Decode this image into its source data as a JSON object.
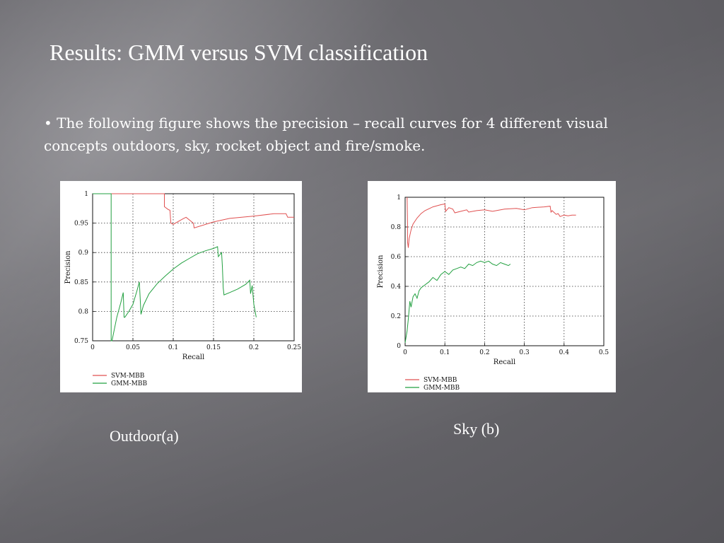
{
  "slide": {
    "title": "Results: GMM versus SVM classification",
    "bullet": "• The following figure shows the precision – recall curves for 4 different visual concepts  outdoors, sky, rocket object and fire/smoke.",
    "captions": [
      "Outdoor(a)",
      "Sky (b)"
    ]
  },
  "colors": {
    "svm": "#e05050",
    "gmm": "#22a040"
  },
  "chart_data": [
    {
      "type": "line",
      "xlabel": "Recall",
      "ylabel": "Precision",
      "xlim": [
        0,
        0.25
      ],
      "ylim": [
        0.75,
        1.0
      ],
      "xticks": [
        0,
        0.05,
        0.1,
        0.15,
        0.2,
        0.25
      ],
      "xtick_labels": [
        "0",
        "0.05",
        "0.1",
        "0.15",
        "0.2",
        "0.25"
      ],
      "yticks": [
        0.75,
        0.8,
        0.85,
        0.9,
        0.95,
        1.0
      ],
      "ytick_labels": [
        "0.75",
        "0.8",
        "0.85",
        "0.9",
        "0.95",
        "1"
      ],
      "grid": true,
      "legend": "bottom-left",
      "series": [
        {
          "name": "SVM-MBB",
          "x": [
            0.0,
            0.089,
            0.089,
            0.094,
            0.096,
            0.097,
            0.1,
            0.113,
            0.116,
            0.125,
            0.126,
            0.15,
            0.17,
            0.2,
            0.225,
            0.24,
            0.242,
            0.25
          ],
          "y": [
            1.0,
            1.0,
            0.978,
            0.973,
            0.972,
            0.95,
            0.948,
            0.958,
            0.96,
            0.95,
            0.942,
            0.952,
            0.958,
            0.962,
            0.966,
            0.966,
            0.96,
            0.96
          ]
        },
        {
          "name": "GMM-MBB",
          "x": [
            0.0,
            0.023,
            0.023,
            0.024,
            0.03,
            0.035,
            0.038,
            0.039,
            0.04,
            0.045,
            0.05,
            0.055,
            0.058,
            0.06,
            0.063,
            0.07,
            0.08,
            0.09,
            0.1,
            0.11,
            0.12,
            0.13,
            0.14,
            0.15,
            0.155,
            0.156,
            0.16,
            0.161,
            0.162,
            0.163,
            0.17,
            0.18,
            0.19,
            0.195,
            0.196,
            0.198,
            0.2,
            0.201,
            0.203
          ],
          "y": [
            1.0,
            1.0,
            0.75,
            0.75,
            0.79,
            0.815,
            0.832,
            0.79,
            0.79,
            0.8,
            0.812,
            0.835,
            0.85,
            0.795,
            0.81,
            0.83,
            0.847,
            0.86,
            0.872,
            0.882,
            0.89,
            0.898,
            0.903,
            0.907,
            0.91,
            0.893,
            0.9,
            0.877,
            0.84,
            0.828,
            0.832,
            0.838,
            0.846,
            0.853,
            0.83,
            0.844,
            0.812,
            0.805,
            0.79
          ]
        }
      ]
    },
    {
      "type": "line",
      "xlabel": "Recall",
      "ylabel": "Precision",
      "xlim": [
        0,
        0.5
      ],
      "ylim": [
        0,
        1.0
      ],
      "xticks": [
        0,
        0.1,
        0.2,
        0.3,
        0.4,
        0.5
      ],
      "xtick_labels": [
        "0",
        "0.1",
        "0.2",
        "0.3",
        "0.4",
        "0.5"
      ],
      "yticks": [
        0,
        0.2,
        0.4,
        0.6,
        0.8,
        1.0
      ],
      "ytick_labels": [
        "0",
        "0.2",
        "0.4",
        "0.6",
        "0.8",
        "1"
      ],
      "grid": true,
      "legend": "bottom-left",
      "series": [
        {
          "name": "SVM-MBB",
          "x": [
            0.005,
            0.006,
            0.006,
            0.008,
            0.01,
            0.015,
            0.02,
            0.03,
            0.04,
            0.05,
            0.07,
            0.09,
            0.1,
            0.102,
            0.11,
            0.12,
            0.125,
            0.14,
            0.155,
            0.16,
            0.18,
            0.2,
            0.22,
            0.25,
            0.28,
            0.3,
            0.32,
            0.35,
            0.365,
            0.367,
            0.37,
            0.38,
            0.385,
            0.39,
            0.4,
            0.41,
            0.42,
            0.43
          ],
          "y": [
            1.0,
            0.82,
            0.7,
            0.66,
            0.72,
            0.78,
            0.82,
            0.86,
            0.89,
            0.91,
            0.935,
            0.95,
            0.955,
            0.905,
            0.93,
            0.92,
            0.895,
            0.905,
            0.915,
            0.9,
            0.91,
            0.915,
            0.905,
            0.92,
            0.925,
            0.915,
            0.93,
            0.935,
            0.94,
            0.9,
            0.91,
            0.885,
            0.89,
            0.87,
            0.88,
            0.875,
            0.88,
            0.88
          ]
        },
        {
          "name": "GMM-MBB",
          "x": [
            0.0,
            0.005,
            0.008,
            0.01,
            0.012,
            0.015,
            0.02,
            0.025,
            0.03,
            0.035,
            0.04,
            0.05,
            0.06,
            0.07,
            0.08,
            0.09,
            0.1,
            0.11,
            0.12,
            0.13,
            0.14,
            0.15,
            0.16,
            0.17,
            0.18,
            0.19,
            0.2,
            0.21,
            0.22,
            0.23,
            0.24,
            0.25,
            0.26,
            0.265
          ],
          "y": [
            0.02,
            0.1,
            0.18,
            0.24,
            0.3,
            0.26,
            0.33,
            0.35,
            0.32,
            0.37,
            0.39,
            0.41,
            0.43,
            0.46,
            0.44,
            0.48,
            0.5,
            0.48,
            0.51,
            0.52,
            0.53,
            0.52,
            0.55,
            0.54,
            0.56,
            0.57,
            0.56,
            0.57,
            0.55,
            0.54,
            0.56,
            0.55,
            0.54,
            0.55
          ]
        }
      ]
    }
  ]
}
